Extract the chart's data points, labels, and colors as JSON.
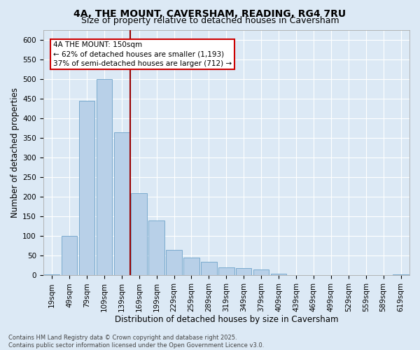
{
  "title": "4A, THE MOUNT, CAVERSHAM, READING, RG4 7RU",
  "subtitle": "Size of property relative to detached houses in Caversham",
  "xlabel": "Distribution of detached houses by size in Caversham",
  "ylabel": "Number of detached properties",
  "categories": [
    "19sqm",
    "49sqm",
    "79sqm",
    "109sqm",
    "139sqm",
    "169sqm",
    "199sqm",
    "229sqm",
    "259sqm",
    "289sqm",
    "319sqm",
    "349sqm",
    "379sqm",
    "409sqm",
    "439sqm",
    "469sqm",
    "499sqm",
    "529sqm",
    "559sqm",
    "589sqm",
    "619sqm"
  ],
  "values": [
    3,
    100,
    445,
    500,
    365,
    210,
    140,
    65,
    45,
    35,
    20,
    18,
    16,
    5,
    0,
    0,
    0,
    0,
    0,
    0,
    3
  ],
  "bar_color": "#b8d0e8",
  "bar_edgecolor": "#7aaace",
  "vline_x": 4.5,
  "vline_color": "#990000",
  "annotation_title": "4A THE MOUNT: 150sqm",
  "annotation_line1": "← 62% of detached houses are smaller (1,193)",
  "annotation_line2": "37% of semi-detached houses are larger (712) →",
  "annotation_box_color": "#cc0000",
  "ylim": [
    0,
    625
  ],
  "yticks": [
    0,
    50,
    100,
    150,
    200,
    250,
    300,
    350,
    400,
    450,
    500,
    550,
    600
  ],
  "background_color": "#dce9f5",
  "plot_bg_color": "#dce9f5",
  "footer": "Contains HM Land Registry data © Crown copyright and database right 2025.\nContains public sector information licensed under the Open Government Licence v3.0.",
  "title_fontsize": 10,
  "subtitle_fontsize": 9,
  "xlabel_fontsize": 8.5,
  "ylabel_fontsize": 8.5,
  "tick_fontsize": 7.5,
  "annotation_fontsize": 7.5,
  "footer_fontsize": 6
}
